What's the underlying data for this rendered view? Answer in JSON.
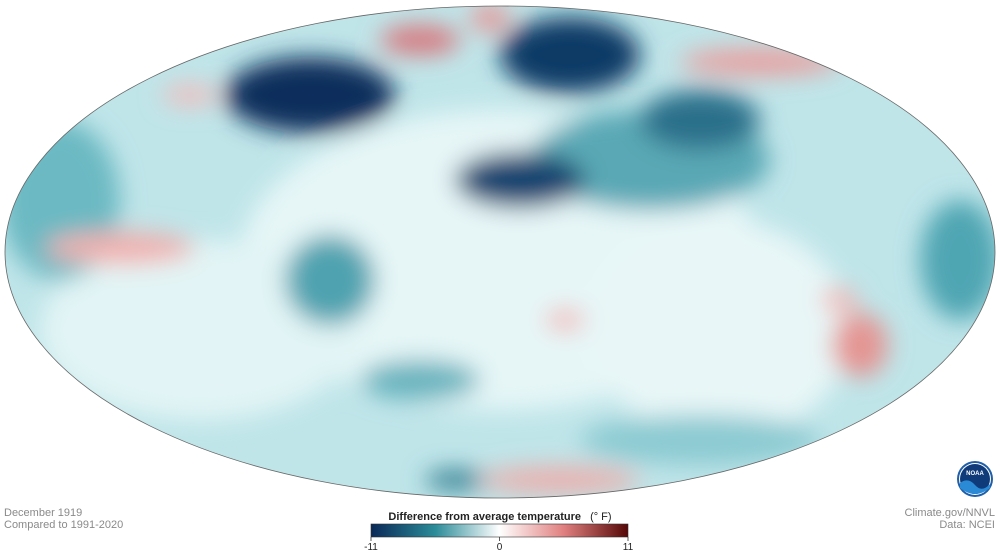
{
  "caption": {
    "date": "December 1919",
    "baseline": "Compared to 1991-2020"
  },
  "legend": {
    "title": "Difference from average temperature",
    "unit": "(° F)",
    "range": [
      -11,
      11
    ],
    "ticks": [
      -11,
      0,
      11
    ],
    "colors": [
      "#0a2857",
      "#2b8c99",
      "#ffffff",
      "#e07f7f",
      "#560707"
    ]
  },
  "credits": {
    "source": "Climate.gov/NNVL",
    "data": "Data: NCEI",
    "logo": "NOAA"
  }
}
